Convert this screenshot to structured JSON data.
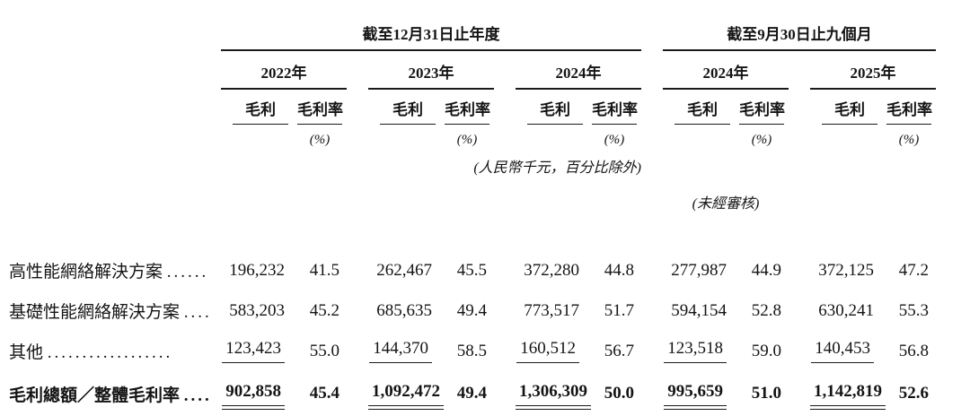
{
  "table": {
    "section_headers": [
      {
        "label": "截至12月31日止年度"
      },
      {
        "label": "截至9月30日止九個月"
      }
    ],
    "year_headers": [
      "2022年",
      "2023年",
      "2024年",
      "2024年",
      "2025年"
    ],
    "sub_headers": {
      "gross_profit": "毛利",
      "gross_margin": "毛利率",
      "percent_sign": "(%)"
    },
    "notes": {
      "units": "(人民幣千元，百分比除外)",
      "unaudited": "(未經審核)"
    },
    "rows": [
      {
        "label": "高性能網絡解決方案",
        "dots": "......",
        "values": [
          "196,232",
          "41.5",
          "262,467",
          "45.5",
          "372,280",
          "44.8",
          "277,987",
          "44.9",
          "372,125",
          "47.2"
        ]
      },
      {
        "label": "基礎性能網絡解決方案",
        "dots": "....",
        "values": [
          "583,203",
          "45.2",
          "685,635",
          "49.4",
          "773,517",
          "51.7",
          "594,154",
          "52.8",
          "630,241",
          "55.3"
        ]
      },
      {
        "label": "其他",
        "dots": "..................",
        "values": [
          "123,423",
          "55.0",
          "144,370",
          "58.5",
          "160,512",
          "56.7",
          "123,518",
          "59.0",
          "140,453",
          "56.8"
        ]
      }
    ],
    "total_row": {
      "label": "毛利總額／整體毛利率",
      "dots": "....",
      "values": [
        "902,858",
        "45.4",
        "1,092,472",
        "49.4",
        "1,306,309",
        "50.0",
        "995,659",
        "51.0",
        "1,142,819",
        "52.6"
      ]
    },
    "text_color": "#141414",
    "rule_color": "#1a1a1a"
  }
}
